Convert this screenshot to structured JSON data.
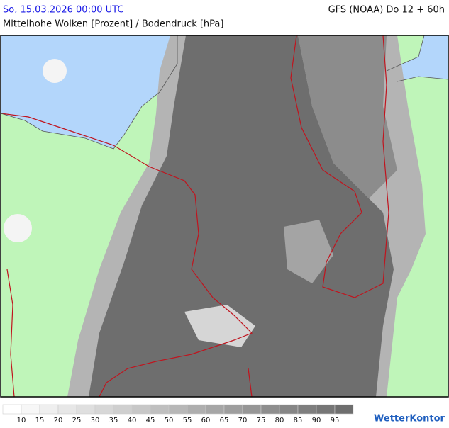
{
  "header": {
    "datetime": "So, 15.03.2026 00:00 UTC",
    "model": "GFS (NOAA) Do 12 + 60h",
    "title": "Mittelhohe Wolken [Prozent] / Bodendruck [hPa]"
  },
  "legend": {
    "labels": [
      10,
      15,
      20,
      25,
      30,
      35,
      40,
      45,
      50,
      55,
      60,
      65,
      70,
      75,
      80,
      85,
      90,
      95
    ]
  },
  "logo": "WetterKontor"
}
